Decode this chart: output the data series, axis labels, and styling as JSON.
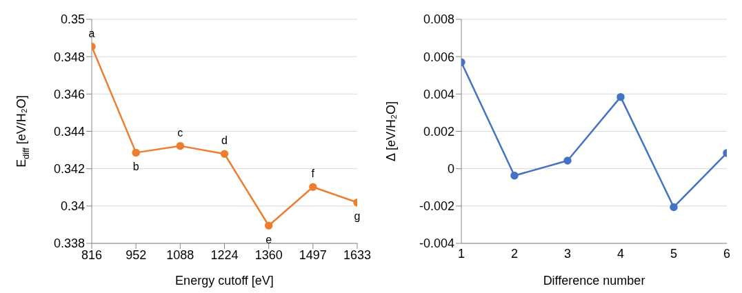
{
  "chart_data": [
    {
      "type": "line",
      "categories": [
        "816",
        "952",
        "1088",
        "1224",
        "1360",
        "1497",
        "1633"
      ],
      "values": [
        0.34854,
        0.34286,
        0.34322,
        0.34279,
        0.33895,
        0.34102,
        0.34019
      ],
      "color": "#ed7d31",
      "marker": "circle",
      "xlabel": "Energy cutoff [eV]",
      "ylabel": "E$_{diff}$ [eV/H₂O]",
      "ylim": [
        0.338,
        0.35
      ],
      "yticks": [
        0.338,
        0.34,
        0.342,
        0.344,
        0.346,
        0.348,
        0.35
      ],
      "grid": "y",
      "annotations": [
        {
          "text": "a",
          "x": "816",
          "y": 0.34854
        },
        {
          "text": "b",
          "x": "952",
          "y": 0.34286
        },
        {
          "text": "c",
          "x": "1088",
          "y": 0.34322
        },
        {
          "text": "d",
          "x": "1224",
          "y": 0.34279
        },
        {
          "text": "e",
          "x": "1360",
          "y": 0.33895
        },
        {
          "text": "f",
          "x": "1497",
          "y": 0.34102
        },
        {
          "text": "g",
          "x": "1633",
          "y": 0.34019
        }
      ]
    },
    {
      "type": "line",
      "x": [
        1,
        2,
        3,
        4,
        5,
        6
      ],
      "values": [
        0.0057,
        -0.00037,
        0.00043,
        0.00384,
        -0.00206,
        0.00084
      ],
      "color": "#4472c4",
      "marker": "circle",
      "xlabel": "Difference number",
      "ylabel": "Δ [eV/H₂O]",
      "xlim": [
        1,
        6
      ],
      "xticks": [
        1,
        2,
        3,
        4,
        5,
        6
      ],
      "ylim": [
        -0.004,
        0.008
      ],
      "yticks": [
        -0.004,
        -0.002,
        0,
        0.002,
        0.004,
        0.006,
        0.008
      ],
      "grid": "y"
    }
  ]
}
